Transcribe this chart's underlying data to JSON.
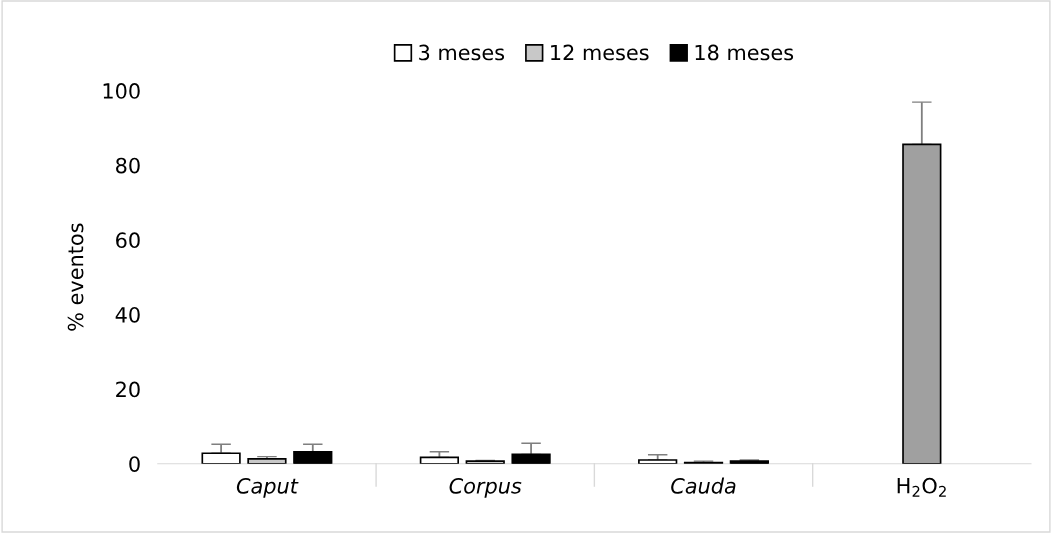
{
  "chart_data": {
    "type": "bar",
    "ylabel": "% eventos",
    "categories": [
      "Caput",
      "Corpus",
      "Cauda",
      "H$_{2}$O$_{2}$"
    ],
    "series": [
      {
        "name": "3 meses",
        "color": "#ffffff",
        "values": [
          2.8,
          1.7,
          1.0,
          null
        ],
        "errors": [
          [
            2.8,
            5.2
          ],
          [
            1.7,
            3.2
          ],
          [
            1.0,
            2.4
          ],
          null
        ]
      },
      {
        "name": "12 meses",
        "color": "#c8c8c8",
        "values": [
          1.3,
          0.7,
          0.3,
          null
        ],
        "errors": [
          [
            1.3,
            1.9
          ],
          [
            0.7,
            0.9
          ],
          [
            0.3,
            0.7
          ],
          null
        ]
      },
      {
        "name": "18 meses",
        "color": "#000000",
        "values": [
          3.2,
          2.5,
          0.7,
          null
        ],
        "errors": [
          [
            3.2,
            5.2
          ],
          [
            2.5,
            5.5
          ],
          [
            0.7,
            1.0
          ],
          null
        ]
      },
      {
        "color": "#a0a0a0",
        "values": [
          null,
          null,
          null,
          85.6
        ],
        "errors": [
          null,
          null,
          null,
          [
            85.6,
            96.9
          ]
        ]
      }
    ],
    "ylim": [
      0,
      100
    ],
    "yticks": [
      0,
      20,
      40,
      60,
      80,
      100
    ],
    "grid": false,
    "legend": "top"
  }
}
